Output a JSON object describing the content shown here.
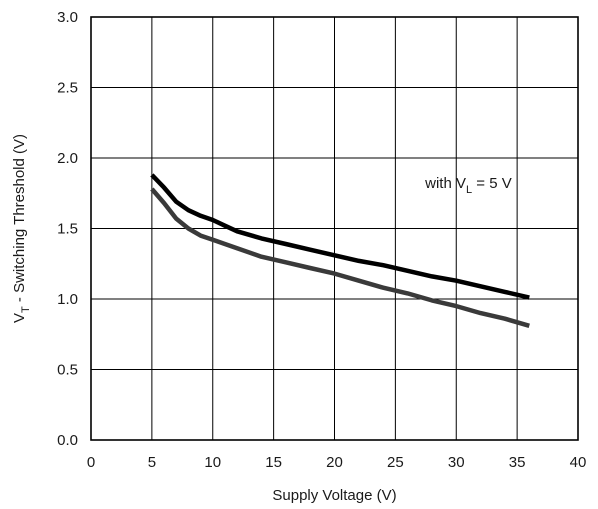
{
  "chart_data": {
    "type": "line",
    "xlabel": "Supply Voltage (V)",
    "ylabel": {
      "prefix": "V",
      "subscript": "T",
      "suffix": " - Switching Threshold (V)"
    },
    "xlim": [
      0,
      40
    ],
    "ylim": [
      0,
      3.0
    ],
    "x_ticks": [
      0,
      5,
      10,
      15,
      20,
      25,
      30,
      35,
      40
    ],
    "y_ticks": [
      0,
      0.5,
      1.0,
      1.5,
      2.0,
      2.5,
      3.0
    ],
    "x_tick_labels": [
      "0",
      "5",
      "10",
      "15",
      "20",
      "25",
      "30",
      "35",
      "40"
    ],
    "y_tick_labels": [
      "0.0",
      "0.5",
      "1.0",
      "1.5",
      "2.0",
      "2.5",
      "3.0"
    ],
    "grid": true,
    "annotation": {
      "prefix": "with V",
      "subscript": "L",
      "suffix": " = 5 V",
      "x": 31,
      "y": 2.0
    },
    "series": [
      {
        "color": "#000000",
        "x": [
          5,
          6,
          7,
          8,
          9,
          10,
          11,
          12,
          14,
          16,
          18,
          20,
          22,
          24,
          26,
          28,
          30,
          32,
          34,
          36
        ],
        "y": [
          1.88,
          1.79,
          1.69,
          1.63,
          1.59,
          1.56,
          1.52,
          1.48,
          1.43,
          1.39,
          1.35,
          1.31,
          1.27,
          1.24,
          1.2,
          1.16,
          1.13,
          1.09,
          1.05,
          1.01
        ]
      },
      {
        "color": "#3a3a3a",
        "x": [
          5,
          6,
          7,
          8,
          9,
          10,
          11,
          12,
          14,
          16,
          18,
          20,
          22,
          24,
          26,
          28,
          30,
          32,
          34,
          36
        ],
        "y": [
          1.78,
          1.68,
          1.57,
          1.5,
          1.45,
          1.42,
          1.39,
          1.36,
          1.3,
          1.26,
          1.22,
          1.18,
          1.13,
          1.08,
          1.04,
          0.99,
          0.95,
          0.9,
          0.86,
          0.81
        ]
      }
    ]
  }
}
